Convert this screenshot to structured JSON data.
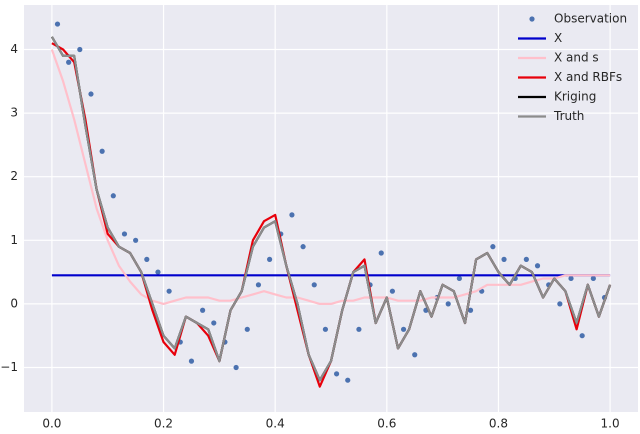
{
  "chart_data": {
    "type": "line",
    "x": [
      0,
      0.02,
      0.04,
      0.06,
      0.08,
      0.1,
      0.12,
      0.14,
      0.16,
      0.18,
      0.2,
      0.22,
      0.24,
      0.26,
      0.28,
      0.3,
      0.32,
      0.34,
      0.36,
      0.38,
      0.4,
      0.42,
      0.44,
      0.46,
      0.48,
      0.5,
      0.52,
      0.54,
      0.56,
      0.58,
      0.6,
      0.62,
      0.64,
      0.66,
      0.68,
      0.7,
      0.72,
      0.74,
      0.76,
      0.78,
      0.8,
      0.82,
      0.84,
      0.86,
      0.88,
      0.9,
      0.92,
      0.94,
      0.96,
      0.98,
      1
    ],
    "series": [
      {
        "name": "Observation",
        "color": "#4c72b0",
        "style": "markers",
        "x": [
          0.01,
          0.03,
          0.05,
          0.07,
          0.09,
          0.11,
          0.13,
          0.15,
          0.17,
          0.19,
          0.21,
          0.23,
          0.25,
          0.27,
          0.29,
          0.31,
          0.33,
          0.35,
          0.37,
          0.39,
          0.41,
          0.43,
          0.45,
          0.47,
          0.49,
          0.51,
          0.53,
          0.55,
          0.57,
          0.59,
          0.61,
          0.63,
          0.65,
          0.67,
          0.69,
          0.71,
          0.73,
          0.75,
          0.77,
          0.79,
          0.81,
          0.83,
          0.85,
          0.87,
          0.89,
          0.91,
          0.93,
          0.95,
          0.97,
          0.99
        ],
        "values": [
          4.4,
          3.8,
          4.0,
          3.3,
          2.4,
          1.7,
          1.1,
          1.0,
          0.7,
          0.5,
          0.2,
          -0.6,
          -0.9,
          -0.1,
          -0.3,
          -0.6,
          -1.0,
          -0.4,
          0.3,
          0.7,
          1.1,
          1.4,
          0.9,
          0.3,
          -0.4,
          -1.1,
          -1.2,
          -0.4,
          0.3,
          0.8,
          0.2,
          -0.4,
          -0.8,
          -0.1,
          0.1,
          0.0,
          0.4,
          -0.1,
          0.2,
          0.9,
          0.7,
          0.4,
          0.7,
          0.6,
          0.3,
          0.0,
          0.4,
          -0.5,
          0.4,
          0.1
        ]
      },
      {
        "name": "X",
        "color": "#0000cc",
        "x": [
          0,
          1
        ],
        "values": [
          0.45,
          0.45
        ]
      },
      {
        "name": "X and s",
        "color": "#ffc0cb",
        "values": [
          4.0,
          3.5,
          2.9,
          2.2,
          1.5,
          1.0,
          0.6,
          0.35,
          0.15,
          0.05,
          0.0,
          0.05,
          0.1,
          0.1,
          0.1,
          0.05,
          0.05,
          0.1,
          0.15,
          0.2,
          0.15,
          0.1,
          0.1,
          0.05,
          0.0,
          0.0,
          0.05,
          0.05,
          0.1,
          0.1,
          0.1,
          0.05,
          0.05,
          0.05,
          0.1,
          0.1,
          0.1,
          0.15,
          0.2,
          0.3,
          0.3,
          0.3,
          0.3,
          0.35,
          0.4,
          0.4,
          0.45,
          0.45,
          0.45,
          0.45,
          0.45
        ]
      },
      {
        "name": "X and RBFs",
        "color": "#e8000b",
        "values": [
          4.1,
          4.0,
          3.8,
          2.9,
          1.8,
          1.1,
          0.9,
          0.8,
          0.5,
          -0.1,
          -0.6,
          -0.8,
          -0.2,
          -0.3,
          -0.5,
          -0.9,
          -0.1,
          0.2,
          1.0,
          1.3,
          1.4,
          0.6,
          -0.1,
          -0.8,
          -1.3,
          -0.9,
          -0.1,
          0.5,
          0.7,
          -0.3,
          0.1,
          -0.7,
          -0.4,
          0.2,
          -0.2,
          0.3,
          0.2,
          -0.3,
          0.7,
          0.8,
          0.5,
          0.3,
          0.6,
          0.5,
          0.1,
          0.4,
          0.2,
          -0.4,
          0.3,
          -0.2,
          0.3
        ]
      },
      {
        "name": "Kriging",
        "color": "#000000",
        "values": [
          4.2,
          3.9,
          3.9,
          2.8,
          1.8,
          1.2,
          0.9,
          0.8,
          0.5,
          0.0,
          -0.5,
          -0.7,
          -0.2,
          -0.3,
          -0.4,
          -0.9,
          -0.1,
          0.2,
          0.9,
          1.2,
          1.3,
          0.6,
          0.0,
          -0.8,
          -1.2,
          -0.9,
          -0.1,
          0.5,
          0.6,
          -0.3,
          0.1,
          -0.7,
          -0.4,
          0.2,
          -0.2,
          0.3,
          0.2,
          -0.3,
          0.7,
          0.8,
          0.5,
          0.3,
          0.6,
          0.5,
          0.1,
          0.4,
          0.2,
          -0.3,
          0.3,
          -0.2,
          0.3
        ]
      },
      {
        "name": "Truth",
        "color": "#8c8c8c",
        "values": [
          4.2,
          3.9,
          3.9,
          2.8,
          1.8,
          1.2,
          0.9,
          0.8,
          0.5,
          0.0,
          -0.5,
          -0.7,
          -0.2,
          -0.3,
          -0.4,
          -0.9,
          -0.1,
          0.2,
          0.9,
          1.2,
          1.3,
          0.6,
          0.0,
          -0.8,
          -1.2,
          -0.9,
          -0.1,
          0.5,
          0.6,
          -0.3,
          0.1,
          -0.7,
          -0.4,
          0.2,
          -0.2,
          0.3,
          0.2,
          -0.3,
          0.7,
          0.8,
          0.5,
          0.3,
          0.6,
          0.5,
          0.1,
          0.4,
          0.2,
          -0.3,
          0.3,
          -0.2,
          0.3
        ]
      }
    ],
    "xlim": [
      -0.05,
      1.05
    ],
    "ylim": [
      -1.7,
      4.7
    ],
    "xticks": [
      {
        "value": 0,
        "label": "0.0"
      },
      {
        "value": 0.2,
        "label": "0.2"
      },
      {
        "value": 0.4,
        "label": "0.4"
      },
      {
        "value": 0.6,
        "label": "0.6"
      },
      {
        "value": 0.8,
        "label": "0.8"
      },
      {
        "value": 1,
        "label": "1.0"
      }
    ],
    "yticks": [
      {
        "value": -1,
        "label": "−1"
      },
      0,
      1,
      2,
      3,
      4
    ],
    "grid": true,
    "legend": "upper right",
    "background": "#eaeaf2"
  }
}
